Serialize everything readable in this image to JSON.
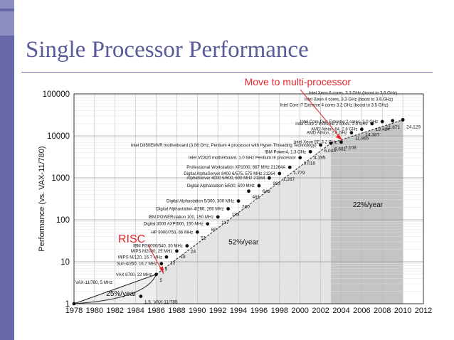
{
  "slide": {
    "title": "Single Processor Performance"
  },
  "annotations": {
    "multiprocessor": "Move to multi-processor",
    "risc": "RISC"
  },
  "colors": {
    "accent_red": "#e8252a",
    "title_blue": "#5a5a9a",
    "left_bar": "#6668a8",
    "region_light": "#eeeeee",
    "region_mid": "#d6d6d6",
    "region_dark": "#bdbdbd"
  },
  "chart_data": {
    "type": "scatter",
    "ylabel": "Performance (vs. VAX-11/780)",
    "xlabel": "",
    "yscale": "log",
    "xlim": [
      1978,
      2012
    ],
    "ylim": [
      1,
      100000
    ],
    "xticks": [
      1978,
      1980,
      1982,
      1984,
      1986,
      1988,
      1990,
      1992,
      1994,
      1996,
      1998,
      2000,
      2002,
      2004,
      2006,
      2008,
      2010,
      2012
    ],
    "yticks": [
      {
        "value": 1,
        "label": "1"
      },
      {
        "value": 10,
        "label": "10"
      },
      {
        "value": 100,
        "label": "100"
      },
      {
        "value": 1000,
        "label": "1000"
      },
      {
        "value": 10000,
        "label": "10000"
      },
      {
        "value": 100000,
        "label": "100000"
      }
    ],
    "grid": true,
    "growth_regions": [
      {
        "label": "25%/year",
        "x": [
          1978,
          1986
        ]
      },
      {
        "label": "52%/year",
        "x": [
          1986,
          2003
        ]
      },
      {
        "label": "22%/year",
        "x": [
          2003,
          2010
        ]
      }
    ],
    "points": [
      {
        "x": 1978,
        "y": 1,
        "label": "VAX-11/780, 5 MHz",
        "value": "",
        "side": "above"
      },
      {
        "x": 1984.5,
        "y": 1.5,
        "label": "",
        "value": "1.5, VAX-11/785",
        "side": "right"
      },
      {
        "x": 1986,
        "y": 5,
        "label": "VAX 8700, 22 MHz",
        "value": "5",
        "side": "left"
      },
      {
        "x": 1986.5,
        "y": 9,
        "label": "Sun-4/260, 16.7 MHz",
        "value": "9",
        "side": "left"
      },
      {
        "x": 1987,
        "y": 13,
        "label": "MIPS M/120, 16.7 MHz",
        "value": "13",
        "side": "left"
      },
      {
        "x": 1988,
        "y": 18,
        "label": "MIPS M2000, 25 MHz",
        "value": "18",
        "side": "left"
      },
      {
        "x": 1989,
        "y": 24,
        "label": "IBM RS6000/540, 30 MHz",
        "value": "24",
        "side": "left"
      },
      {
        "x": 1990,
        "y": 51,
        "label": "HP 9000/750, 66 MHz",
        "value": "51",
        "side": "left"
      },
      {
        "x": 1991,
        "y": 80,
        "label": "Digital 3000 AXP/500, 150 MHz",
        "value": "80",
        "side": "left"
      },
      {
        "x": 1992,
        "y": 117,
        "label": "IBM POWERstation 100, 150 MHz",
        "value": "117",
        "side": "left"
      },
      {
        "x": 1993,
        "y": 183,
        "label": "Digital Alphastation 4/266, 266 MHz",
        "value": "183",
        "side": "left"
      },
      {
        "x": 1994,
        "y": 280,
        "label": "Digital Alphastation 5/300, 300 MHz",
        "value": "280",
        "side": "left"
      },
      {
        "x": 1995,
        "y": 481,
        "label": "",
        "value": "481",
        "side": "left"
      },
      {
        "x": 1996,
        "y": 649,
        "label": "Digital Alphastation 5/500, 500 MHz",
        "value": "649",
        "side": "left"
      },
      {
        "x": 1997,
        "y": 993,
        "label": "AlphaServer 4000 5/600, 600 MHz 21164",
        "value": "993",
        "side": "left"
      },
      {
        "x": 1998,
        "y": 1267,
        "label": "Digital AlphaServer 8400 6/575, 575 MHz 21264",
        "value": "1,267",
        "side": "left"
      },
      {
        "x": 1999,
        "y": 1779,
        "label": "Professional Workstation XP1000, 667 MHz 21264A",
        "value": "1,779",
        "side": "left"
      },
      {
        "x": 2000,
        "y": 3016,
        "label": "Intel VC820 motherboard, 1.0 GHz Pentium III processor",
        "value": "3,016",
        "side": "left"
      },
      {
        "x": 2001,
        "y": 4195,
        "label": "IBM Power4, 1.3 GHz",
        "value": "4,195",
        "side": "left"
      },
      {
        "x": 2002,
        "y": 6043,
        "label": "Intel D850EMVR motherboard (3.06 GHz, Pentium 4 processor with Hyper-Threading Technology)",
        "value": "6,043",
        "side": "left"
      },
      {
        "x": 2003,
        "y": 6681,
        "label": "",
        "value": "6,681",
        "side": "right"
      },
      {
        "x": 2004,
        "y": 7108,
        "label": "Intel Xeon EE 3.2 GHz",
        "value": "7,108",
        "side": "left"
      },
      {
        "x": 2005,
        "y": 11865,
        "label": "AMD Athlon, 2.6 GHz",
        "value": "11,865",
        "side": "left"
      },
      {
        "x": 2006,
        "y": 14387,
        "label": "AMD Athlon 64, 2.8 GHz",
        "value": "14,387",
        "side": "left"
      },
      {
        "x": 2007,
        "y": 19484,
        "label": "Intel Core 2 Extreme 2 cores, 2.9 GHz",
        "value": "19,484",
        "side": "left"
      },
      {
        "x": 2008,
        "y": 21871,
        "label": "Intel Core Duo Extreme 2 cores, 3.0 GHz",
        "value": "21,871",
        "side": "left"
      },
      {
        "x": 2009,
        "y": 23000,
        "label": "Intel Core i7 Extreme 4 cores 3.2 GHz (boost to 3.5 GHz)",
        "value": "",
        "side": "left"
      },
      {
        "x": 2010,
        "y": 24129,
        "label": "Intel Xeon 4 cores, 3.3 GHz (boost to 3.6 GHz)",
        "value": "24,129",
        "side": "right"
      },
      {
        "x": 2010,
        "y": 24129,
        "label": "Intel Xeon 6 cores, 3.3 GHz (boost to 3.6 GHz)",
        "value": "",
        "side": "left"
      }
    ]
  }
}
